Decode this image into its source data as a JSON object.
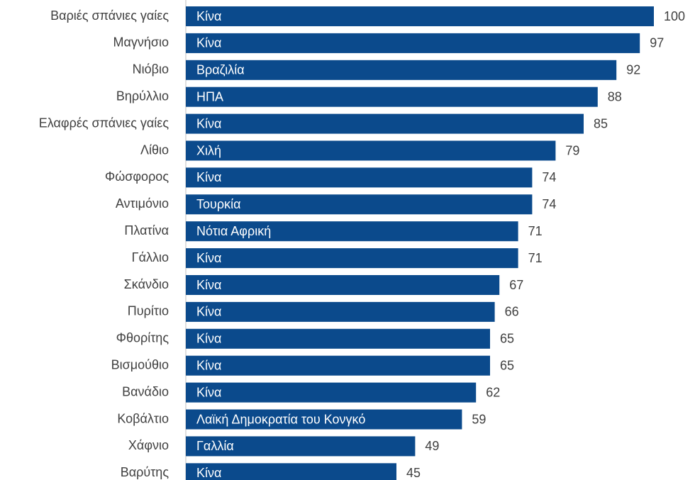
{
  "chart_data": {
    "type": "barh",
    "categories": [
      "Βαριές σπάνιες γαίες",
      "Μαγνήσιο",
      "Νιόβιο",
      "Βηρύλλιο",
      "Ελαφρές σπάνιες γαίες",
      "Λίθιο",
      "Φώσφορος",
      "Αντιμόνιο",
      "Πλατίνα",
      "Γάλλιο",
      "Σκάνδιο",
      "Πυρίτιο",
      "Φθορίτης",
      "Βισμούθιο",
      "Βανάδιο",
      "Κοβάλτιο",
      "Χάφνιο",
      "Βαρύτης"
    ],
    "values": [
      100,
      97,
      92,
      88,
      85,
      79,
      74,
      74,
      71,
      71,
      67,
      66,
      65,
      65,
      62,
      59,
      49,
      45
    ],
    "bar_labels": [
      "Κίνα",
      "Κίνα",
      "Βραζιλία",
      "ΗΠΑ",
      "Κίνα",
      "Χιλή",
      "Κίνα",
      "Τουρκία",
      "Νότια Αφρική",
      "Κίνα",
      "Κίνα",
      "Κίνα",
      "Κίνα",
      "Κίνα",
      "Κίνα",
      "Λαϊκή Δημοκρατία του Κονγκό",
      "Γαλλία",
      "Κίνα"
    ],
    "color": "#0b4a8c"
  }
}
